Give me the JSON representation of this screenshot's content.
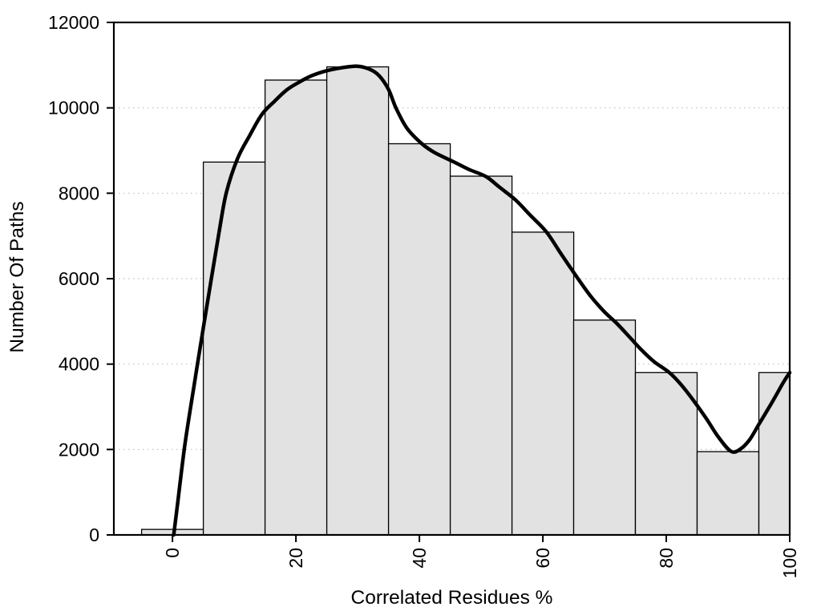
{
  "chart_data": {
    "type": "bar",
    "subtype": "histogram-with-spline-curve",
    "title": "",
    "xlabel": "Correlated Residues %",
    "ylabel": "Number Of Paths",
    "xlim": [
      -9.5,
      100
    ],
    "ylim": [
      0,
      12000
    ],
    "x_ticks": [
      0,
      20,
      40,
      60,
      80,
      100
    ],
    "y_ticks": [
      0,
      2000,
      4000,
      6000,
      8000,
      10000,
      12000
    ],
    "grid_y": [
      2000,
      4000,
      6000,
      8000,
      10000
    ],
    "x_tick_labels_rotated": true,
    "legend": null,
    "bars": [
      {
        "x0": -5,
        "x1": 5,
        "value": 130
      },
      {
        "x0": 5,
        "x1": 15,
        "value": 8730
      },
      {
        "x0": 15,
        "x1": 25,
        "value": 10650
      },
      {
        "x0": 25,
        "x1": 35,
        "value": 10960
      },
      {
        "x0": 35,
        "x1": 45,
        "value": 9160
      },
      {
        "x0": 45,
        "x1": 55,
        "value": 8400
      },
      {
        "x0": 55,
        "x1": 65,
        "value": 7090
      },
      {
        "x0": 65,
        "x1": 75,
        "value": 5030
      },
      {
        "x0": 75,
        "x1": 85,
        "value": 3800
      },
      {
        "x0": 85,
        "x1": 95,
        "value": 1950
      },
      {
        "x0": 95,
        "x1": 100,
        "value": 3800
      }
    ],
    "curve_points": [
      [
        0.2,
        0
      ],
      [
        0.8,
        700
      ],
      [
        2,
        2100
      ],
      [
        3.5,
        3500
      ],
      [
        5,
        4850
      ],
      [
        6.3,
        6000
      ],
      [
        7.5,
        7050
      ],
      [
        8.7,
        8000
      ],
      [
        10.5,
        8800
      ],
      [
        12.5,
        9350
      ],
      [
        14.5,
        9850
      ],
      [
        16.5,
        10150
      ],
      [
        18.5,
        10420
      ],
      [
        20.5,
        10600
      ],
      [
        22.5,
        10750
      ],
      [
        25,
        10870
      ],
      [
        27.5,
        10940
      ],
      [
        30,
        10975
      ],
      [
        32,
        10900
      ],
      [
        33.5,
        10750
      ],
      [
        35,
        10430
      ],
      [
        36.2,
        10000
      ],
      [
        38,
        9520
      ],
      [
        40.4,
        9160
      ],
      [
        42.5,
        8950
      ],
      [
        45.5,
        8740
      ],
      [
        48,
        8560
      ],
      [
        50.8,
        8390
      ],
      [
        53,
        8140
      ],
      [
        55.6,
        7840
      ],
      [
        58,
        7480
      ],
      [
        60.6,
        7090
      ],
      [
        63,
        6570
      ],
      [
        65.7,
        6000
      ],
      [
        67.8,
        5580
      ],
      [
        70,
        5220
      ],
      [
        72,
        4950
      ],
      [
        74,
        4640
      ],
      [
        76,
        4330
      ],
      [
        78,
        4060
      ],
      [
        80.6,
        3790
      ],
      [
        82.5,
        3500
      ],
      [
        84.5,
        3130
      ],
      [
        86.5,
        2720
      ],
      [
        88.5,
        2280
      ],
      [
        90.5,
        1955
      ],
      [
        92,
        2010
      ],
      [
        93.5,
        2230
      ],
      [
        95,
        2590
      ],
      [
        97.2,
        3120
      ],
      [
        99,
        3580
      ],
      [
        100,
        3800
      ]
    ]
  },
  "style": {
    "background": "#ffffff",
    "bar_fill": "#e2e2e2",
    "bar_stroke": "#000000",
    "curve_color": "#000000",
    "grid_color": "#bdbdbd",
    "axis_color": "#000000",
    "text_color": "#000000"
  }
}
